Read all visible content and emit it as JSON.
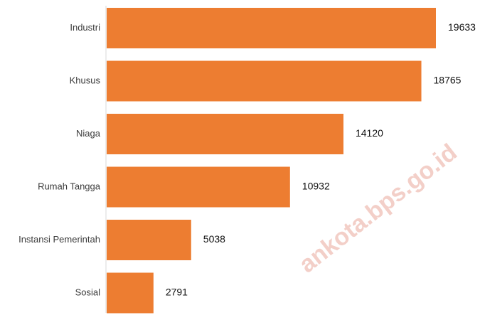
{
  "chart_data": {
    "type": "bar",
    "orientation": "horizontal",
    "categories": [
      "Industri",
      "Khusus",
      "Niaga",
      "Rumah Tangga",
      "Instansi Pemerintah",
      "Sosial"
    ],
    "values": [
      19633,
      18765,
      14120,
      10932,
      5038,
      2791
    ],
    "title": "",
    "xlabel": "",
    "ylabel": "",
    "xlim": [
      0,
      19633
    ],
    "grid": false,
    "legend": "none",
    "bar_color": "#ED7D31",
    "axis_color": "#d9d9d9"
  },
  "watermark": {
    "text": "ankota.bps.go.id",
    "color": "#f3cfc8"
  }
}
